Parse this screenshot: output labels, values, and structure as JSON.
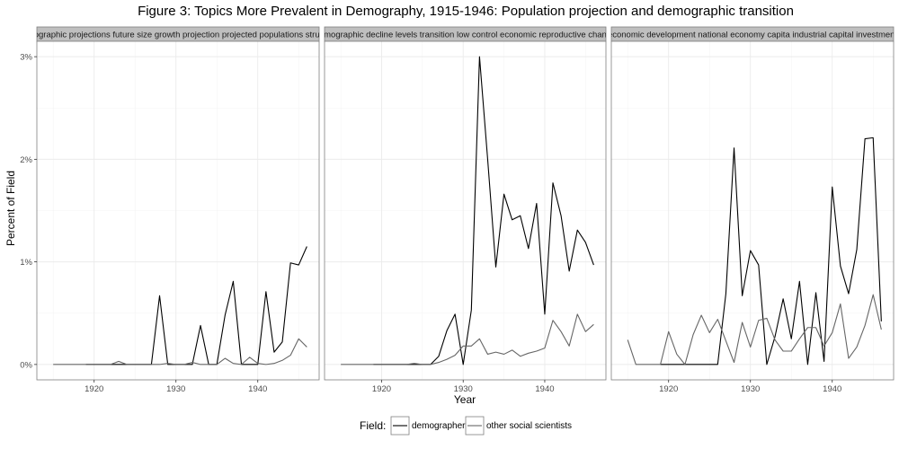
{
  "chart_data": {
    "type": "line",
    "title": "Figure 3: Topics More Prevalent in Demography, 1915-1946: Population projection and demographic transition",
    "xlabel": "Year",
    "ylabel": "Percent of Field",
    "xlim": [
      1913,
      1947.5
    ],
    "ylim": [
      -0.15,
      3.15
    ],
    "xticks": [
      1920,
      1930,
      1940
    ],
    "xtick_labels": [
      "1920",
      "1930",
      "1940"
    ],
    "yticks": [
      0,
      1,
      2,
      3
    ],
    "ytick_labels": [
      "0%",
      "1%",
      "2%",
      "3%"
    ],
    "grid": true,
    "legend": {
      "title": "Field:",
      "position": "bottom",
      "entries": [
        "demographers",
        "other social scientists"
      ]
    },
    "colors": {
      "demographers": "#000000",
      "other social scientists": "#666666",
      "strip": "#bfbfbf",
      "grid": "#ebebeb",
      "border": "#7f7f7f"
    },
    "panels": [
      {
        "strip": "demographic projections future size growth projection projected populations structure",
        "series": [
          {
            "name": "demographers",
            "x": [
              1919,
              1920,
              1921,
              1922,
              1923,
              1924,
              1925,
              1926,
              1927,
              1928,
              1929,
              1930,
              1931,
              1932,
              1933,
              1934,
              1935,
              1936,
              1937,
              1938,
              1939,
              1940,
              1941,
              1942,
              1943,
              1944,
              1945,
              1946
            ],
            "y": [
              0,
              0,
              0,
              0,
              0,
              0,
              0,
              0,
              0,
              0.67,
              0,
              0,
              0,
              0,
              0.38,
              0,
              0,
              0.48,
              0.81,
              0,
              0,
              0,
              0.71,
              0.12,
              0.22,
              0.99,
              0.97,
              1.15
            ]
          },
          {
            "name": "other social scientists",
            "x": [
              1915,
              1916,
              1917,
              1918,
              1919,
              1920,
              1921,
              1922,
              1923,
              1924,
              1925,
              1926,
              1927,
              1928,
              1929,
              1930,
              1931,
              1932,
              1933,
              1934,
              1935,
              1936,
              1937,
              1938,
              1939,
              1940,
              1941,
              1942,
              1943,
              1944,
              1945,
              1946
            ],
            "y": [
              0,
              0,
              0,
              0,
              0,
              0,
              0,
              0,
              0.03,
              0,
              0,
              0,
              0,
              0,
              0.01,
              0,
              0,
              0.02,
              0,
              0,
              0,
              0.06,
              0.01,
              0,
              0.07,
              0.01,
              0,
              0.01,
              0.04,
              0.09,
              0.25,
              0.17
            ]
          }
        ]
      },
      {
        "strip": "demographic decline levels transition low control economic reproductive change",
        "series": [
          {
            "name": "demographers",
            "x": [
              1919,
              1920,
              1921,
              1922,
              1923,
              1924,
              1925,
              1926,
              1927,
              1928,
              1929,
              1930,
              1931,
              1932,
              1933,
              1934,
              1935,
              1936,
              1937,
              1938,
              1939,
              1940,
              1941,
              1942,
              1943,
              1944,
              1945,
              1946
            ],
            "y": [
              0,
              0,
              0,
              0,
              0,
              0,
              0,
              0,
              0.08,
              0.33,
              0.49,
              0,
              0.53,
              3.0,
              2.0,
              0.95,
              1.66,
              1.41,
              1.45,
              1.13,
              1.57,
              0.49,
              1.77,
              1.45,
              0.91,
              1.31,
              1.19,
              0.97
            ]
          },
          {
            "name": "other social scientists",
            "x": [
              1915,
              1916,
              1917,
              1918,
              1919,
              1920,
              1921,
              1922,
              1923,
              1924,
              1925,
              1926,
              1927,
              1928,
              1929,
              1930,
              1931,
              1932,
              1933,
              1934,
              1935,
              1936,
              1937,
              1938,
              1939,
              1940,
              1941,
              1942,
              1943,
              1944,
              1945,
              1946
            ],
            "y": [
              0,
              0,
              0,
              0,
              0,
              0,
              0,
              0,
              0,
              0.01,
              0,
              0,
              0.02,
              0.05,
              0.09,
              0.18,
              0.18,
              0.25,
              0.1,
              0.12,
              0.1,
              0.14,
              0.08,
              0.11,
              0.13,
              0.16,
              0.43,
              0.32,
              0.18,
              0.49,
              0.32,
              0.39
            ]
          }
        ]
      },
      {
        "strip": "economic development national economy capita industrial capital investment",
        "series": [
          {
            "name": "demographers",
            "x": [
              1919,
              1920,
              1921,
              1922,
              1923,
              1924,
              1925,
              1926,
              1927,
              1928,
              1929,
              1930,
              1931,
              1932,
              1933,
              1934,
              1935,
              1936,
              1937,
              1938,
              1939,
              1940,
              1941,
              1942,
              1943,
              1944,
              1945,
              1946
            ],
            "y": [
              0,
              0,
              0,
              0,
              0,
              0,
              0,
              0,
              0.69,
              2.11,
              0.67,
              1.11,
              0.97,
              0,
              0.27,
              0.64,
              0.25,
              0.81,
              0,
              0.7,
              0.03,
              1.73,
              0.96,
              0.69,
              1.12,
              2.2,
              2.21,
              0.42
            ]
          },
          {
            "name": "other social scientists",
            "x": [
              1915,
              1916,
              1917,
              1918,
              1919,
              1920,
              1921,
              1922,
              1923,
              1924,
              1925,
              1926,
              1927,
              1928,
              1929,
              1930,
              1931,
              1932,
              1933,
              1934,
              1935,
              1936,
              1937,
              1938,
              1939,
              1940,
              1941,
              1942,
              1943,
              1944,
              1945,
              1946
            ],
            "y": [
              0.24,
              0,
              0,
              0,
              0,
              0.32,
              0.1,
              0,
              0.29,
              0.48,
              0.31,
              0.44,
              0.23,
              0.02,
              0.41,
              0.17,
              0.43,
              0.45,
              0.24,
              0.13,
              0.13,
              0.25,
              0.36,
              0.36,
              0.18,
              0.31,
              0.59,
              0.06,
              0.17,
              0.38,
              0.68,
              0.34
            ]
          }
        ]
      }
    ]
  }
}
